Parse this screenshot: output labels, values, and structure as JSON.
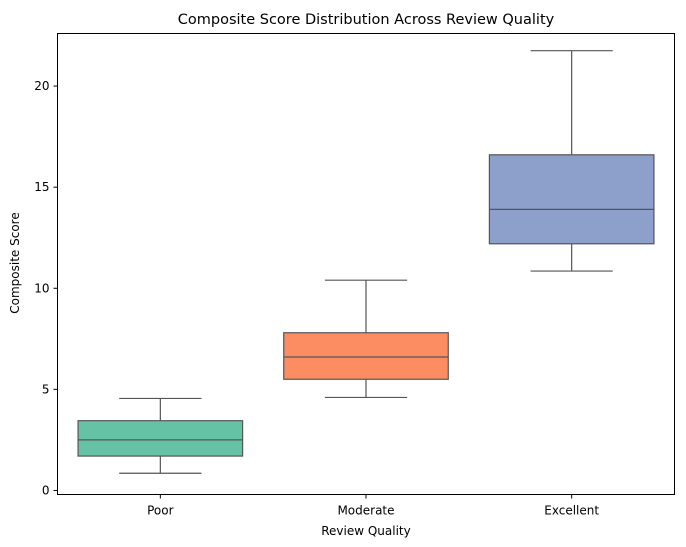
{
  "chart_data": {
    "type": "box",
    "title": "Composite Score Distribution Across Review Quality",
    "xlabel": "Review Quality",
    "ylabel": "Composite Score",
    "ylim": [
      -0.2,
      22.6
    ],
    "yticks": [
      0,
      5,
      10,
      15,
      20
    ],
    "grid": false,
    "categories": [
      "Poor",
      "Moderate",
      "Excellent"
    ],
    "boxes": [
      {
        "category": "Poor",
        "min": 0.85,
        "q1": 1.7,
        "median": 2.5,
        "q3": 3.45,
        "max": 4.55,
        "color": "#66c2a5"
      },
      {
        "category": "Moderate",
        "min": 4.6,
        "q1": 5.5,
        "median": 6.6,
        "q3": 7.8,
        "max": 10.4,
        "color": "#fc8d62"
      },
      {
        "category": "Excellent",
        "min": 10.85,
        "q1": 12.2,
        "median": 13.9,
        "q3": 16.6,
        "max": 21.75,
        "color": "#8da0cb"
      }
    ]
  }
}
